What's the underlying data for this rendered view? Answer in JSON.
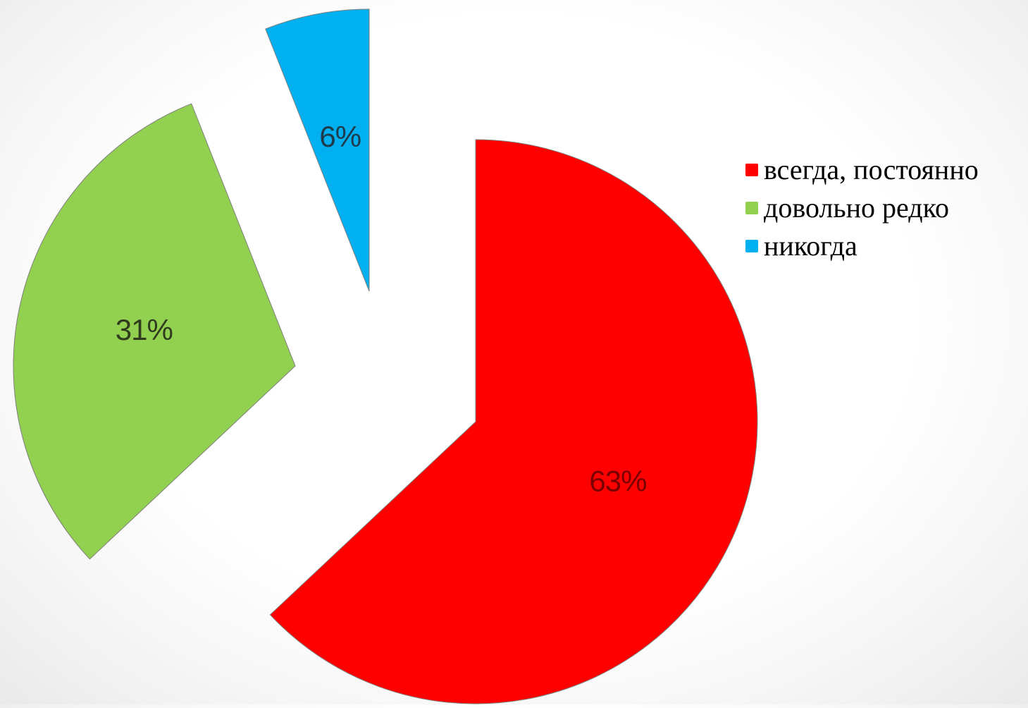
{
  "chart_data": {
    "type": "pie",
    "exploded": true,
    "start_angle_deg": 0,
    "direction": "clockwise",
    "slices": [
      {
        "label": "всегда, постоянно",
        "value": 63,
        "value_label": "63%",
        "color": "#ff0000",
        "label_color": "#7a0000"
      },
      {
        "label": "довольно редко",
        "value": 31,
        "value_label": "31%",
        "color": "#92d050",
        "label_color": "#2f3a1f"
      },
      {
        "label": "никогда",
        "value": 6,
        "value_label": "6%",
        "color": "#00b0f0",
        "label_color": "#1f3a4a"
      }
    ],
    "legend_position": "right"
  }
}
